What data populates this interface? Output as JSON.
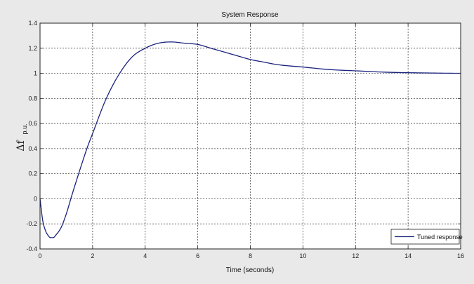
{
  "chart_data": {
    "type": "line",
    "title": "System Response",
    "xlabel": "Time (seconds)",
    "ylabel_symbol": "Δf",
    "ylabel_sub": "p.u.",
    "xlim": [
      0,
      16
    ],
    "ylim": [
      -0.4,
      1.4
    ],
    "xticks": [
      0,
      2,
      4,
      6,
      8,
      10,
      12,
      14,
      16
    ],
    "xtick_labels": [
      "0",
      "2",
      "4",
      "6",
      "8",
      "10",
      "12",
      "14",
      "16"
    ],
    "yticks": [
      -0.4,
      -0.2,
      0,
      0.2,
      0.4,
      0.6,
      0.8,
      1,
      1.2,
      1.4
    ],
    "ytick_labels": [
      "-0.4",
      "-0.2",
      "0",
      "0.2",
      "0.4",
      "0.6",
      "0.8",
      "1",
      "1.2",
      "1.4"
    ],
    "grid": true,
    "legend_position": "bottom-right",
    "series": [
      {
        "name": "Tuned response",
        "color": "#1a237e",
        "x": [
          0,
          0.1,
          0.2,
          0.3,
          0.4,
          0.5,
          0.6,
          0.8,
          1.0,
          1.2,
          1.5,
          1.8,
          2.0,
          2.5,
          3.0,
          3.5,
          4.0,
          4.5,
          5.0,
          5.5,
          6.0,
          6.5,
          7.0,
          7.5,
          8.0,
          8.5,
          9.0,
          10.0,
          11.0,
          12.0,
          13.0,
          14.0,
          15.0,
          16.0
        ],
        "y": [
          0,
          -0.17,
          -0.25,
          -0.29,
          -0.31,
          -0.31,
          -0.29,
          -0.23,
          -0.12,
          0.02,
          0.22,
          0.41,
          0.52,
          0.79,
          0.99,
          1.13,
          1.2,
          1.24,
          1.25,
          1.24,
          1.23,
          1.2,
          1.17,
          1.14,
          1.11,
          1.09,
          1.07,
          1.05,
          1.03,
          1.02,
          1.01,
          1.005,
          1.002,
          1.0
        ]
      }
    ]
  }
}
